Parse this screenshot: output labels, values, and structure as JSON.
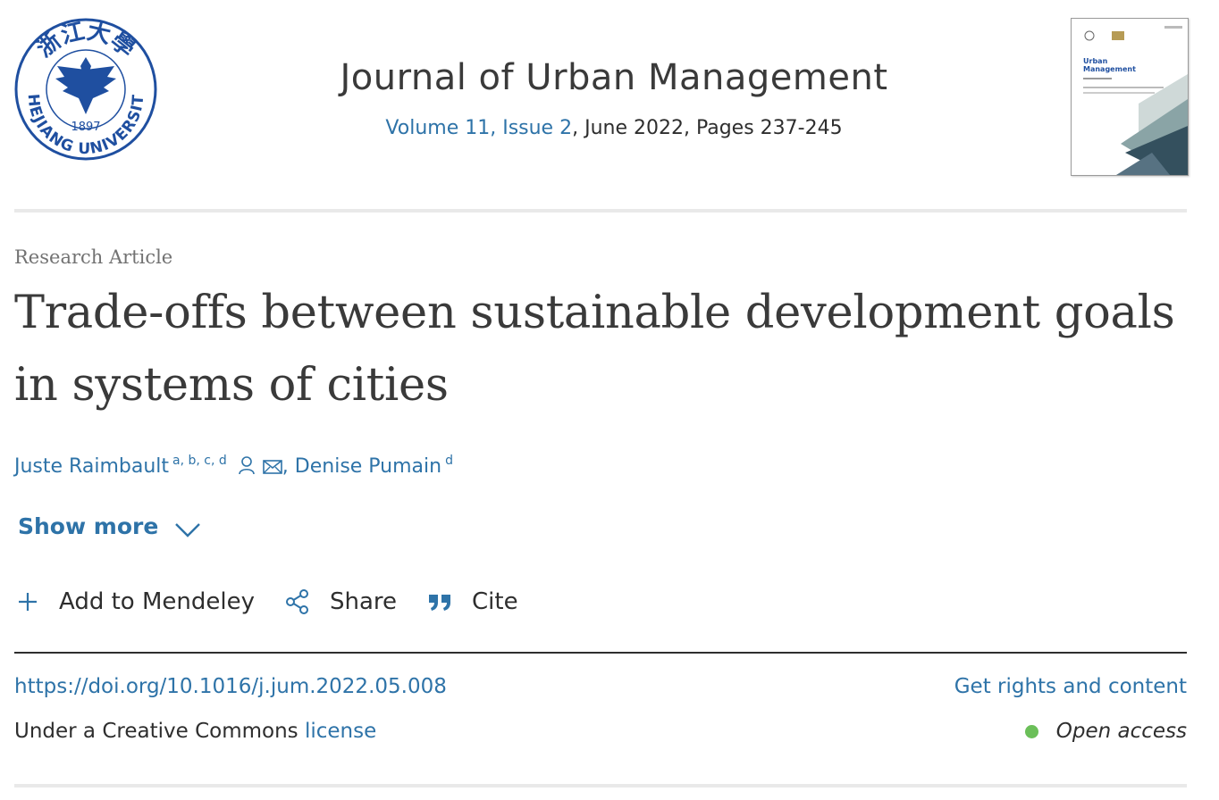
{
  "header": {
    "logo_text_top": "浙江大學",
    "logo_year": "1897",
    "logo_text_bottom": "ZHEJIANG UNIVERSITY",
    "journal_title": "Journal of Urban Management",
    "volume_issue": "Volume 11, Issue 2",
    "issue_rest": ", June 2022, Pages 237-245",
    "cover": {
      "journal_name_line1": "Urban",
      "journal_name_line2": "Management"
    }
  },
  "article": {
    "type": "Research Article",
    "title": "Trade-offs between sustainable development goals in systems of cities",
    "authors": [
      {
        "name": "Juste Raimbault",
        "affiliations": "a, b, c, d"
      },
      {
        "name": "Denise Pumain",
        "affiliations": "d"
      }
    ],
    "author_separator": ",",
    "show_more_label": "Show more"
  },
  "actions": {
    "mendeley_label": "Add to Mendeley",
    "share_label": "Share",
    "cite_label": "Cite"
  },
  "meta": {
    "doi": "https://doi.org/10.1016/j.jum.2022.05.008",
    "rights_label": "Get rights and content",
    "license_prefix": "Under a Creative Commons ",
    "license_link": "license",
    "access_label": "Open access"
  },
  "colors": {
    "link": "#2e73a8",
    "logo_blue": "#1f4fa0",
    "open_access_dot": "#6bbf59",
    "text": "#2e2e2e"
  },
  "icons": [
    "university-seal-logo",
    "person-icon",
    "envelope-icon",
    "chevron-down-icon",
    "plus-icon",
    "share-icon",
    "quote-icon"
  ]
}
